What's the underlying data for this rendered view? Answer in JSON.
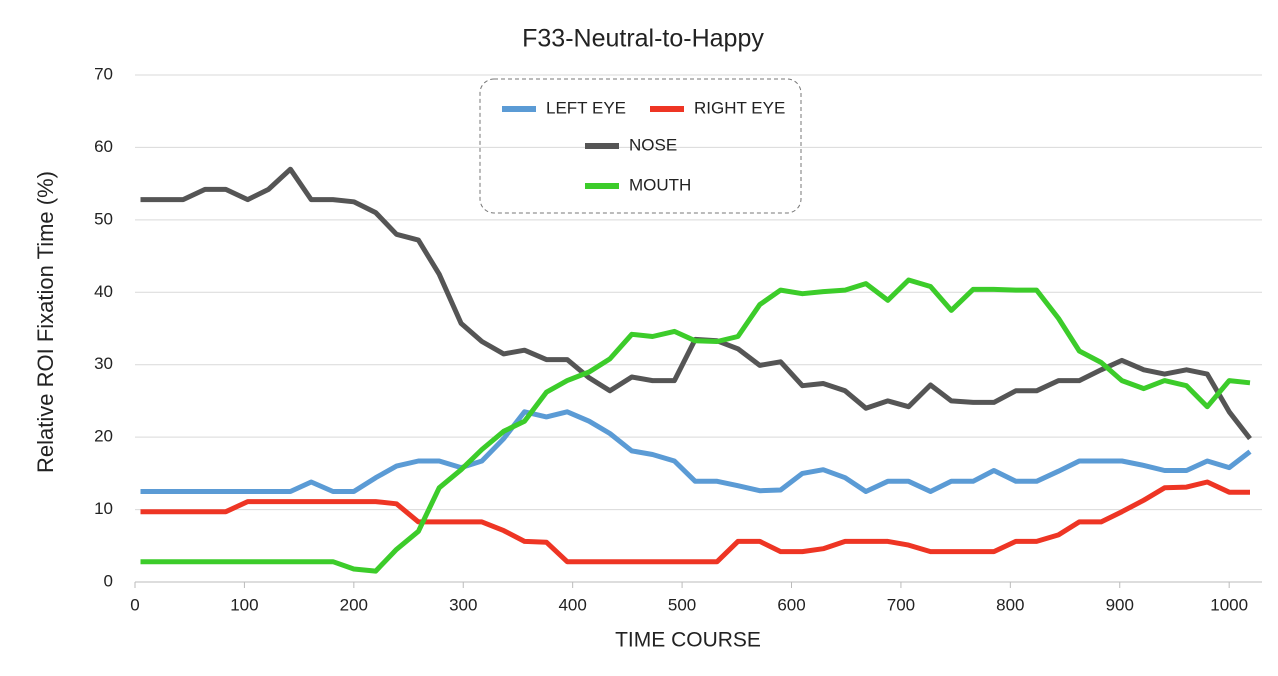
{
  "chart_data": {
    "type": "line",
    "title": "F33-Neutral-to-Happy",
    "x_label": "TIME  COURSE",
    "y_label": "Relative  ROI  Fixation  Time  (%)",
    "x": [
      5,
      25,
      44,
      64,
      83,
      103,
      122,
      142,
      161,
      181,
      200,
      220,
      239,
      259,
      278,
      298,
      317,
      337,
      356,
      376,
      395,
      415,
      434,
      454,
      473,
      493,
      512,
      532,
      551,
      571,
      590,
      610,
      629,
      649,
      668,
      688,
      707,
      727,
      746,
      766,
      785,
      805,
      824,
      844,
      863,
      883,
      902,
      922,
      941,
      961,
      980,
      1000,
      1019
    ],
    "series": [
      {
        "name": "LEFT EYE",
        "color": "#5b9bd5",
        "values": [
          12.5,
          12.5,
          12.5,
          12.5,
          12.5,
          12.5,
          12.5,
          12.5,
          13.8,
          12.5,
          12.5,
          14.4,
          16,
          16.7,
          16.7,
          15.8,
          16.7,
          19.8,
          23.5,
          22.8,
          23.5,
          22.2,
          20.5,
          18.1,
          17.6,
          16.7,
          13.9,
          13.9,
          13.3,
          12.6,
          12.7,
          15,
          15.5,
          14.4,
          12.5,
          13.9,
          13.9,
          12.5,
          13.9,
          13.9,
          15.4,
          13.9,
          13.9,
          15.3,
          16.7,
          16.7,
          16.7,
          16.1,
          15.4,
          15.4,
          16.7,
          15.8,
          18
        ]
      },
      {
        "name": "RIGHT EYE",
        "color": "#ee3524",
        "values": [
          9.7,
          9.7,
          9.7,
          9.7,
          9.7,
          11.1,
          11.1,
          11.1,
          11.1,
          11.1,
          11.1,
          11.1,
          10.8,
          8.3,
          8.3,
          8.3,
          8.3,
          7.1,
          5.6,
          5.5,
          2.8,
          2.8,
          2.8,
          2.8,
          2.8,
          2.8,
          2.8,
          2.8,
          5.6,
          5.6,
          4.2,
          4.2,
          4.6,
          5.6,
          5.6,
          5.6,
          5.1,
          4.2,
          4.2,
          4.2,
          4.2,
          5.6,
          5.6,
          6.5,
          8.3,
          8.3,
          9.7,
          11.3,
          13,
          13.1,
          13.8,
          12.4,
          12.4
        ]
      },
      {
        "name": "NOSE",
        "color": "#555555",
        "values": [
          52.8,
          52.8,
          52.8,
          54.2,
          54.2,
          52.8,
          54.2,
          57,
          52.8,
          52.8,
          52.5,
          51,
          48,
          47.2,
          42.5,
          35.7,
          33.2,
          31.5,
          32,
          30.7,
          30.7,
          28.2,
          26.4,
          28.3,
          27.8,
          27.8,
          33.5,
          33.3,
          32.2,
          29.9,
          30.4,
          27.1,
          27.4,
          26.4,
          24,
          25,
          24.2,
          27.2,
          25,
          24.8,
          24.8,
          26.4,
          26.4,
          27.8,
          27.8,
          29.3,
          30.6,
          29.3,
          28.7,
          29.3,
          28.7,
          23.5,
          19.8
        ]
      },
      {
        "name": "MOUTH",
        "color": "#3ccc2a",
        "values": [
          2.8,
          2.8,
          2.8,
          2.8,
          2.8,
          2.8,
          2.8,
          2.8,
          2.8,
          2.8,
          1.8,
          1.5,
          4.5,
          7,
          13,
          15.5,
          18.3,
          20.8,
          22.2,
          26.2,
          27.8,
          29,
          30.8,
          34.2,
          33.9,
          34.6,
          33.3,
          33.2,
          33.9,
          38.3,
          40.3,
          39.8,
          40.1,
          40.3,
          41.2,
          38.9,
          41.7,
          40.8,
          37.5,
          40.4,
          40.4,
          40.3,
          40.3,
          36.4,
          31.9,
          30.3,
          27.8,
          26.7,
          27.8,
          27.1,
          24.2,
          27.8,
          27.5
        ]
      }
    ],
    "xlim": [
      0,
      1030
    ],
    "xticks": [
      0,
      100,
      200,
      300,
      400,
      500,
      600,
      700,
      800,
      900,
      1000
    ],
    "ylim": [
      0,
      70
    ],
    "yticks": [
      0,
      10,
      20,
      30,
      40,
      50,
      60,
      70
    ],
    "grid": true
  }
}
